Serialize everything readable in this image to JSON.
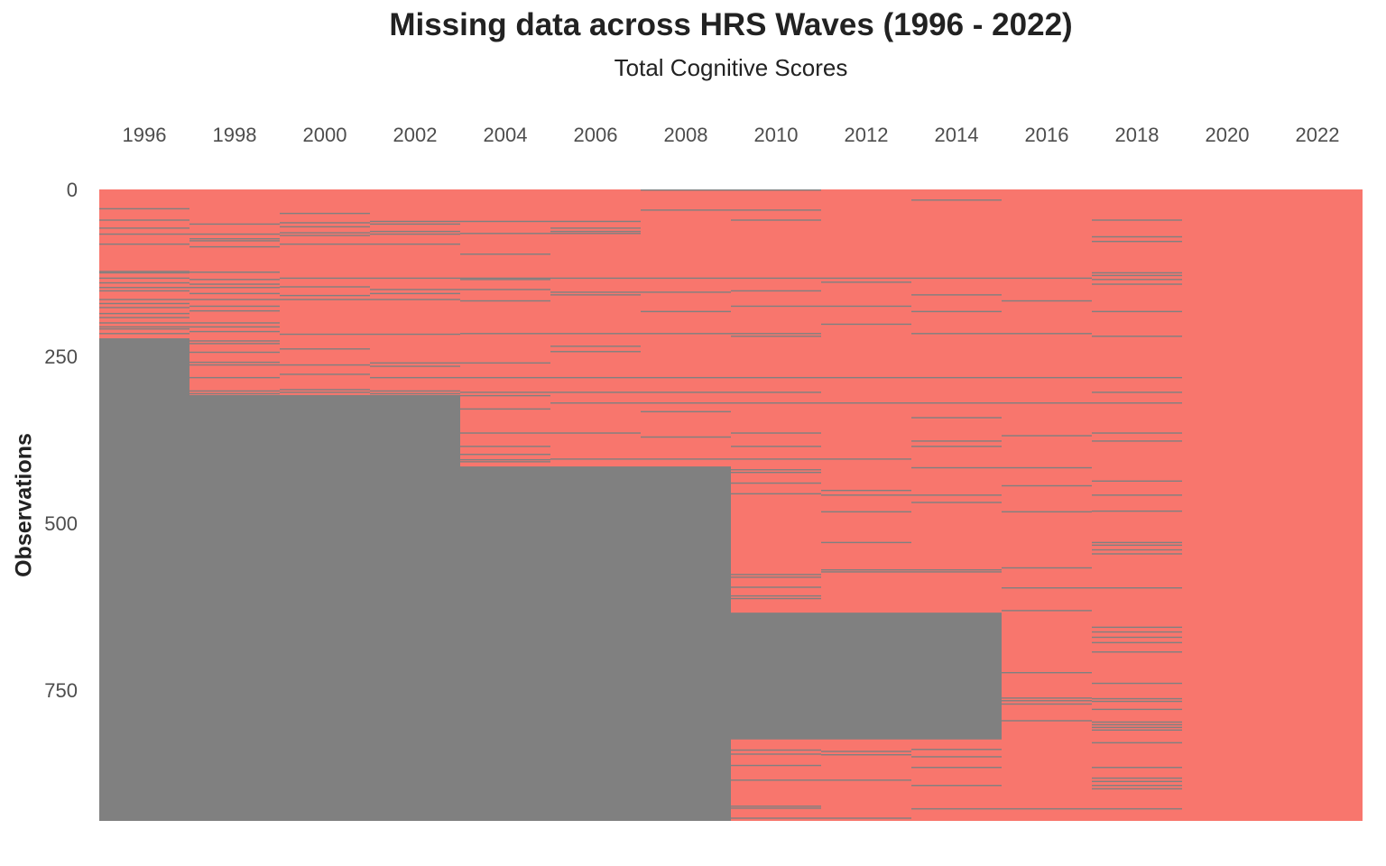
{
  "chart_data": {
    "type": "heatmap",
    "title": "Missing data across HRS Waves (1996 - 2022)",
    "subtitle": "Total Cognitive Scores",
    "xlabel": "",
    "ylabel": "Observations",
    "x_axis_position": "top",
    "columns": [
      "1996",
      "1998",
      "2000",
      "2002",
      "2004",
      "2006",
      "2008",
      "2010",
      "2012",
      "2014",
      "2016",
      "2018",
      "2020",
      "2022"
    ],
    "y_ticks": [
      0,
      250,
      500,
      750
    ],
    "n_observations": 946,
    "colors": {
      "present": "#F8766D",
      "missing": "#808080",
      "background": "#ffffff"
    },
    "grid": false,
    "legend": "none",
    "missing_blocks": {
      "1996": [
        [
          223,
          946
        ]
      ],
      "1998": [
        [
          308,
          946
        ]
      ],
      "2000": [
        [
          308,
          946
        ]
      ],
      "2002": [
        [
          308,
          946
        ]
      ],
      "2004": [
        [
          415,
          946
        ]
      ],
      "2006": [
        [
          415,
          946
        ]
      ],
      "2008": [
        [
          415,
          946
        ]
      ],
      "2010": [
        [
          634,
          824
        ]
      ],
      "2012": [
        [
          634,
          824
        ]
      ],
      "2014": [
        [
          634,
          824
        ]
      ],
      "2016": [],
      "2018": [],
      "2020": [],
      "2022": []
    },
    "missing_rows": {
      "1996": [
        28,
        45,
        57,
        66,
        81,
        122,
        124,
        132,
        139,
        146,
        151,
        164,
        170,
        176,
        185,
        191,
        199,
        205,
        208,
        215
      ],
      "1998": [
        51,
        66,
        73,
        76,
        85,
        123,
        134,
        141,
        146,
        155,
        164,
        174,
        181,
        199,
        205,
        212,
        226,
        230,
        243,
        258,
        262,
        281,
        301,
        305
      ],
      "2000": [
        35,
        49,
        55,
        64,
        68,
        81,
        132,
        145,
        158,
        164,
        216,
        238,
        262,
        276,
        299,
        303
      ],
      "2002": [
        47,
        51,
        62,
        66,
        81,
        132,
        149,
        155,
        164,
        216,
        259,
        264,
        281,
        301,
        305
      ],
      "2004": [
        47,
        65,
        96,
        132,
        134,
        149,
        166,
        215,
        259,
        281,
        303,
        308,
        328,
        364,
        384,
        396,
        404,
        407
      ],
      "2006": [
        47,
        57,
        62,
        65,
        132,
        153,
        157,
        215,
        234,
        242,
        281,
        303,
        319,
        364,
        403
      ],
      "2008": [
        0,
        30,
        132,
        153,
        182,
        215,
        281,
        303,
        319,
        332,
        370,
        403
      ],
      "2010": [
        0,
        30,
        45,
        132,
        151,
        174,
        215,
        219,
        281,
        303,
        319,
        364,
        384,
        403,
        419,
        423,
        439,
        455,
        576,
        580,
        595,
        608,
        612,
        839,
        845,
        862,
        884,
        923,
        926,
        941
      ],
      "2012": [
        132,
        138,
        174,
        201,
        281,
        319,
        403,
        450,
        457,
        482,
        528,
        569,
        572,
        841,
        846,
        884,
        941
      ],
      "2014": [
        15,
        132,
        157,
        182,
        215,
        281,
        319,
        341,
        376,
        384,
        416,
        457,
        468,
        569,
        572,
        838,
        849,
        865,
        892,
        927
      ],
      "2016": [
        132,
        166,
        215,
        281,
        319,
        368,
        416,
        443,
        482,
        566,
        596,
        630,
        723,
        761,
        765,
        770,
        795,
        927
      ],
      "2018": [
        45,
        70,
        77,
        124,
        128,
        134,
        141,
        182,
        219,
        281,
        303,
        319,
        364,
        376,
        436,
        457,
        481,
        528,
        532,
        539,
        545,
        596,
        655,
        662,
        670,
        678,
        692,
        739,
        762,
        766,
        778,
        797,
        801,
        805,
        809,
        828,
        865,
        881,
        886,
        892,
        897,
        927
      ],
      "2020": [],
      "2022": []
    }
  }
}
